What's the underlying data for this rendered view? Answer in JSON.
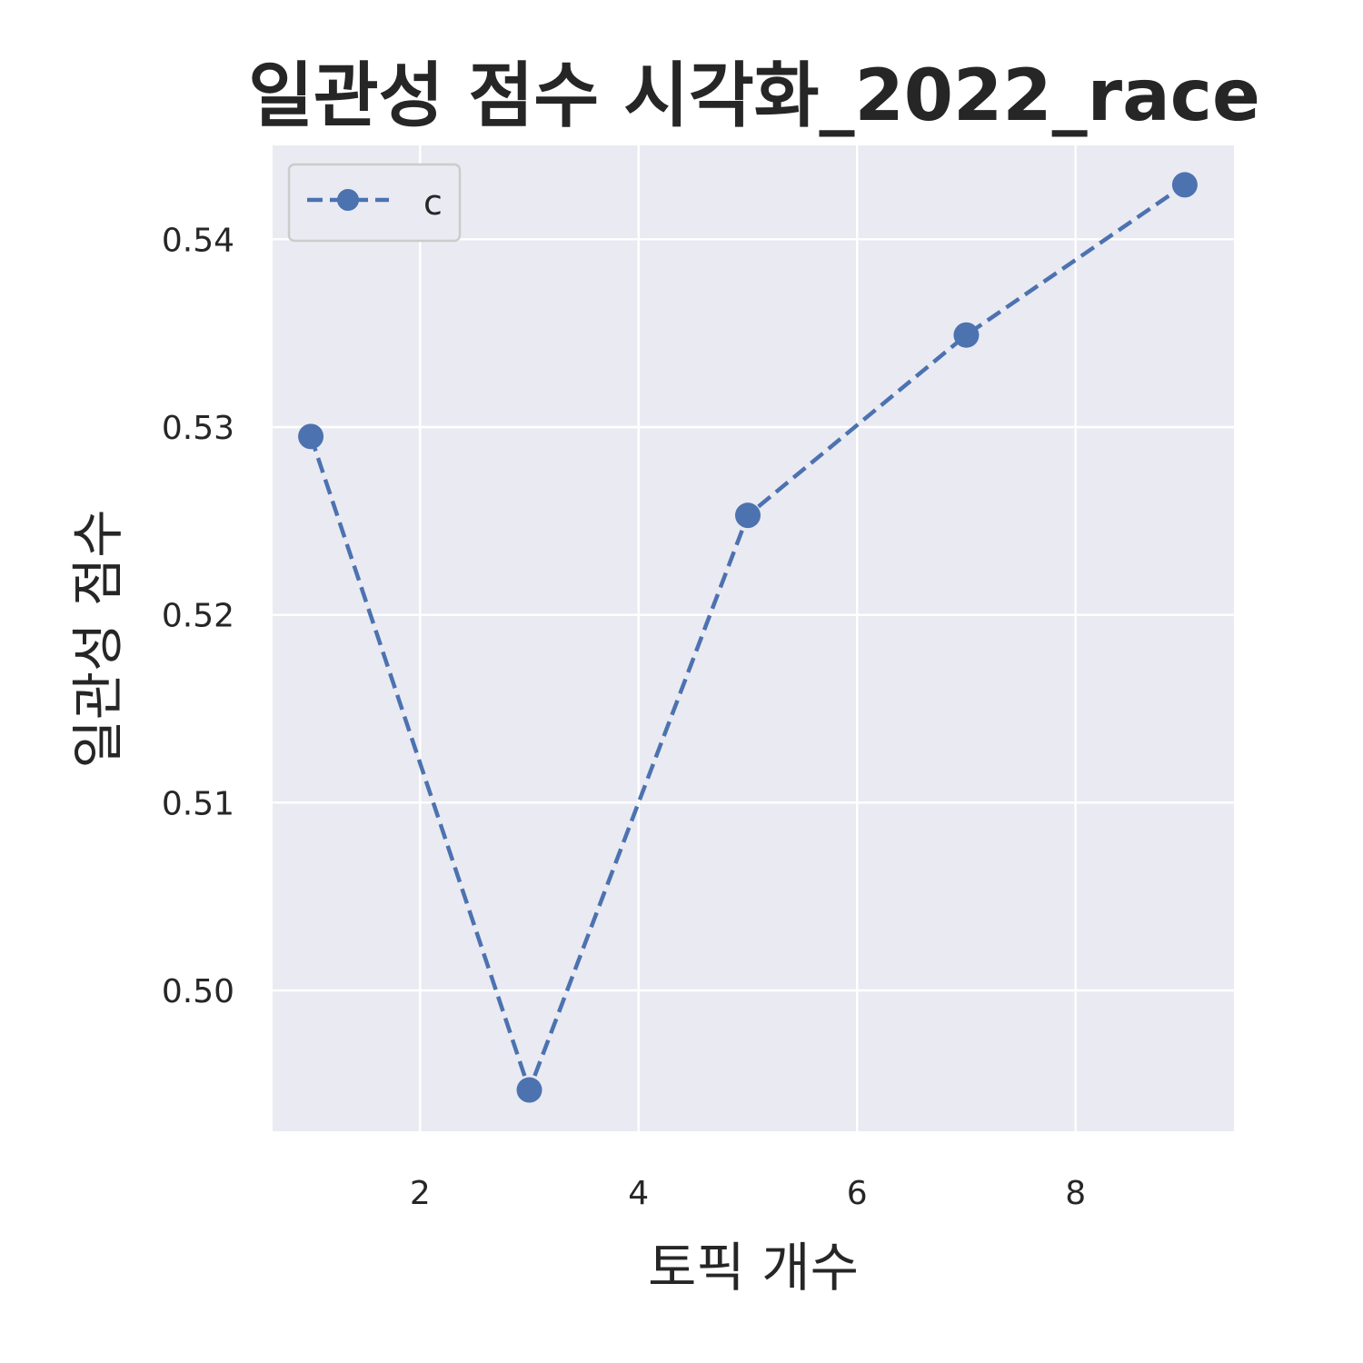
{
  "chart_data": {
    "type": "line",
    "title": "일관성 점수 시각화_2022_race",
    "xlabel": "토픽 개수",
    "ylabel": "일관성 점수",
    "x": [
      1,
      3,
      5,
      7,
      9
    ],
    "series": [
      {
        "name": "c",
        "values": [
          0.5295,
          0.4947,
          0.5253,
          0.5349,
          0.5429
        ],
        "line_style": "dashed",
        "marker": "circle"
      }
    ],
    "xlim": [
      0.65,
      9.45
    ],
    "ylim": [
      0.4925,
      0.545
    ],
    "xticks": [
      2,
      4,
      6,
      8
    ],
    "yticks": [
      0.5,
      0.51,
      0.52,
      0.53,
      0.54
    ],
    "ytick_labels": [
      "0.50",
      "0.51",
      "0.52",
      "0.53",
      "0.54"
    ],
    "grid": true,
    "legend_position": "top-left",
    "colors": {
      "series": "#4c72b0",
      "plot_bg": "#eaeaf2",
      "grid": "#ffffff",
      "text": "#262626"
    }
  }
}
